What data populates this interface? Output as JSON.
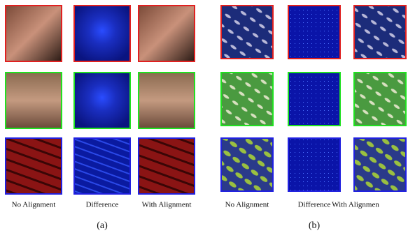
{
  "panels": [
    {
      "caption": "(a)",
      "columns": [
        "No Alignment",
        "Difference",
        "With Alignment"
      ]
    },
    {
      "caption": "(b)",
      "columns": [
        "No Alignment",
        "Difference",
        "With Alignmen"
      ]
    }
  ]
}
